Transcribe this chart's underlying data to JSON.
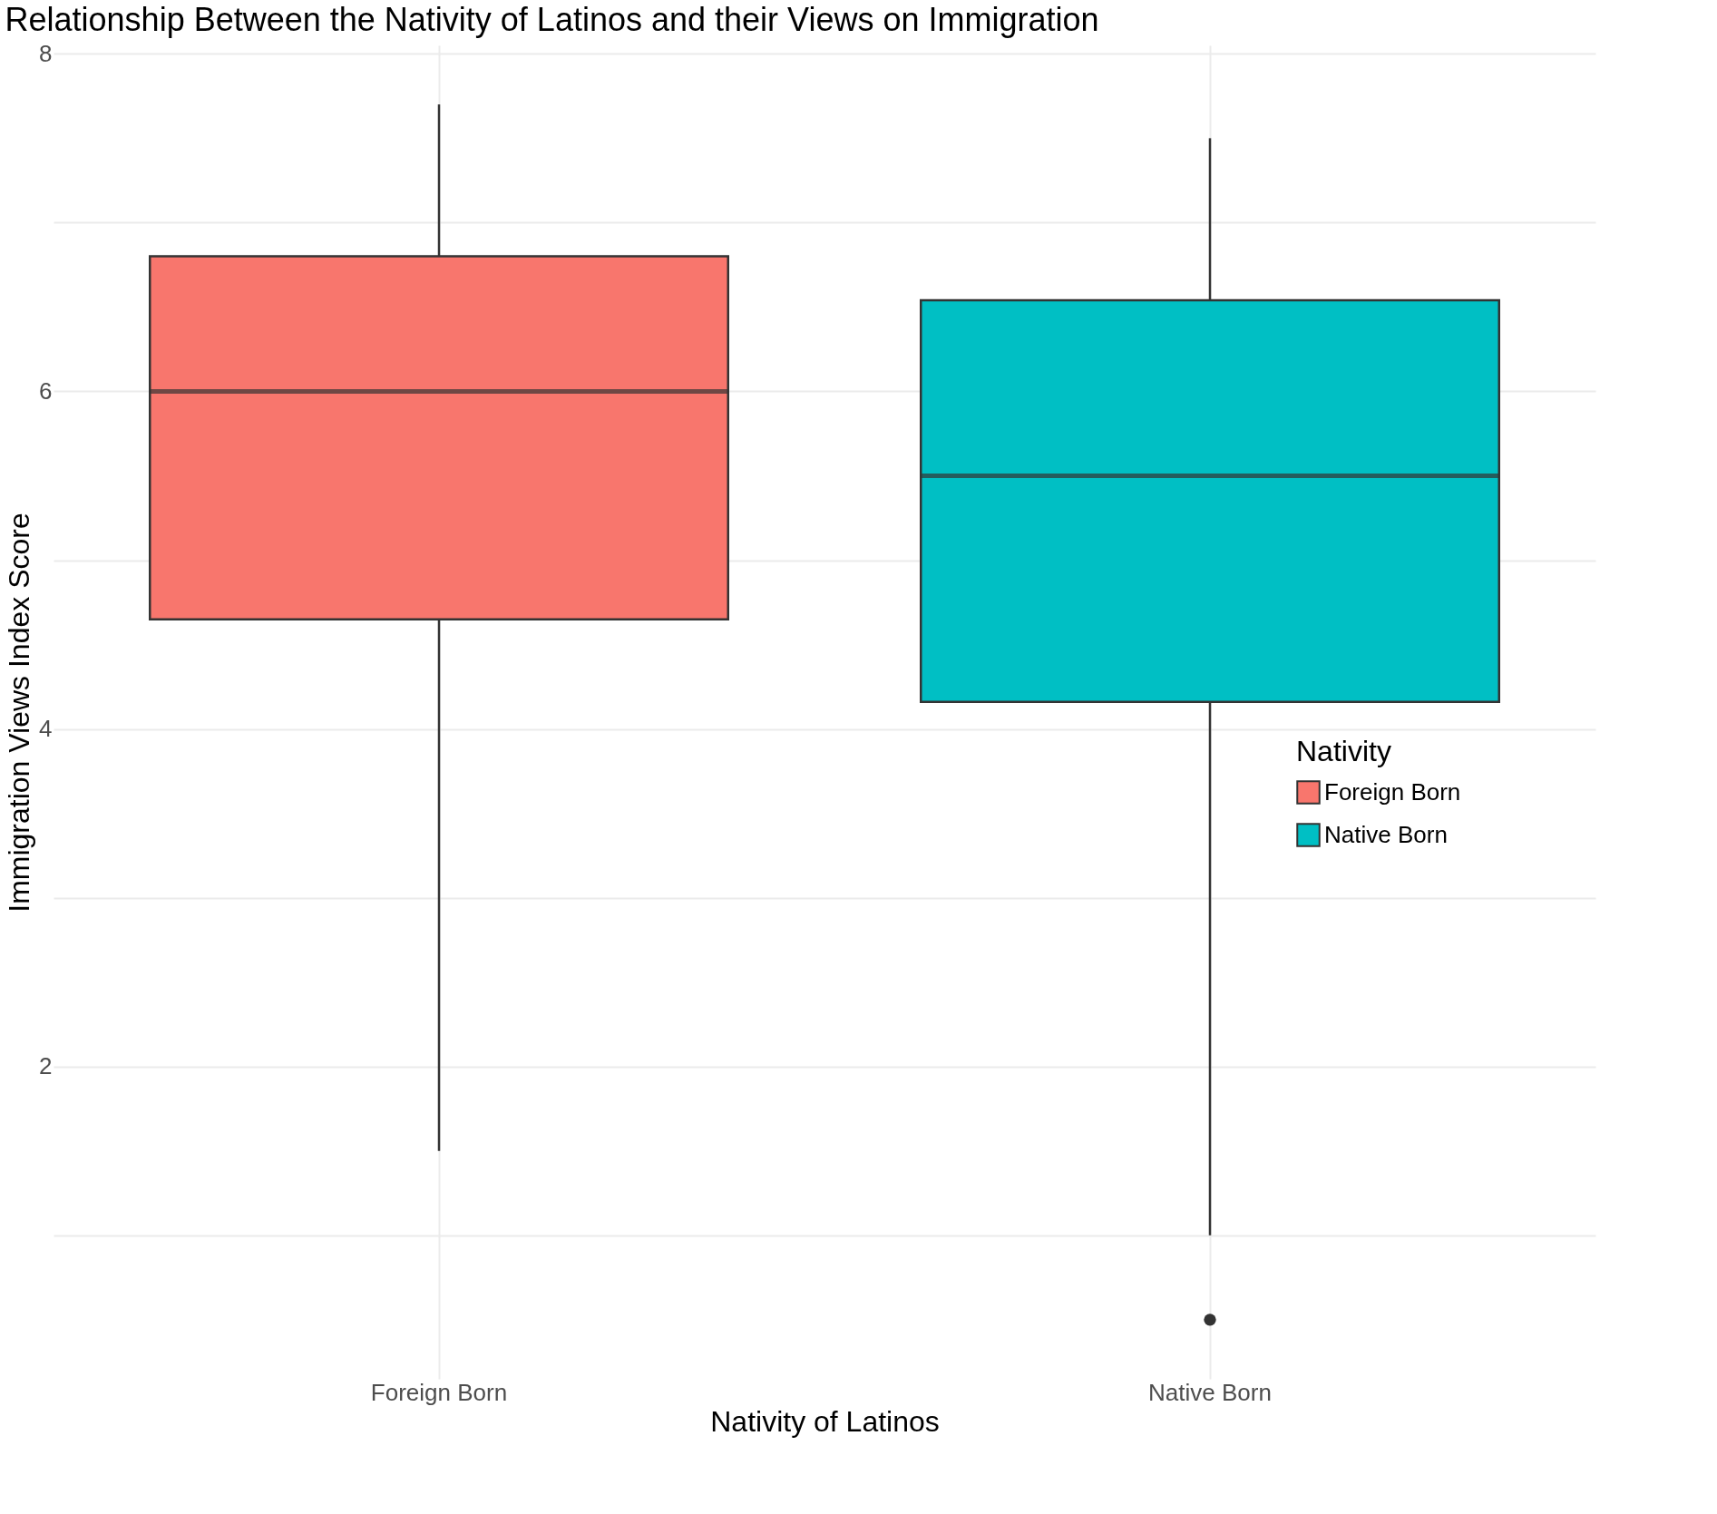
{
  "chart_data": {
    "type": "box",
    "title": "Relationship Between the Nativity of Latinos and their Views on Immigration",
    "xlabel": "Nativity of Latinos",
    "ylabel": "Immigration Views Index Score",
    "legend_title": "Nativity",
    "categories": [
      "Foreign Born",
      "Native Born"
    ],
    "series": [
      {
        "name": "Foreign Born",
        "color": "#f8766d",
        "boxes": [
          {
            "low": 1.5,
            "q1": 4.65,
            "median": 6.0,
            "q3": 6.8,
            "high": 7.7
          },
          null
        ]
      },
      {
        "name": "Native Born",
        "color": "#00bfc4",
        "boxes": [
          null,
          {
            "low": 1.0,
            "q1": 4.16,
            "median": 5.5,
            "q3": 6.54,
            "high": 7.5,
            "outliers": [
              0.5
            ]
          }
        ]
      }
    ],
    "ylim": [
      0.15,
      8.05
    ],
    "yticks": [
      {
        "value": 1,
        "label": null
      },
      2,
      {
        "value": 3,
        "label": null
      },
      4,
      {
        "value": 5,
        "label": null
      },
      6,
      {
        "value": 7,
        "label": null
      },
      8
    ],
    "grid": true,
    "legend": "right"
  }
}
